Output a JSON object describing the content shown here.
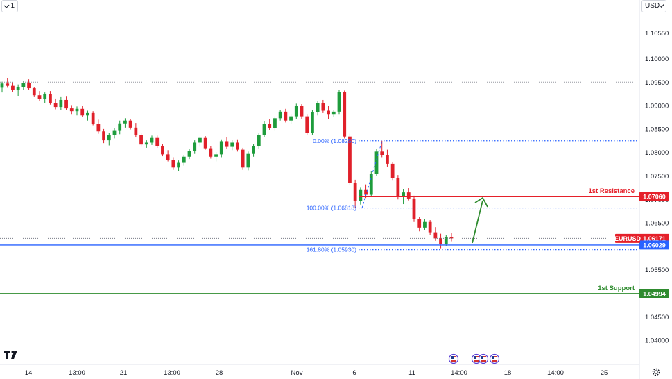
{
  "toolbar": {
    "interval_label": "1",
    "currency_label": "USD"
  },
  "icons": {
    "logo": "tradingview-logo-icon",
    "settings": "gear-icon",
    "events": "economic-event-flag-icon"
  },
  "colors": {
    "bull": "#26a69a",
    "bear": "#ef5350",
    "bull_body": "#1e9c3c",
    "bear_body": "#e0202a",
    "fib": "#2962ff",
    "resistance": "#e5202a",
    "support": "#2e8b2e",
    "arrow": "#2e8b2e",
    "price_tag": "#e5202a"
  },
  "chart_data": {
    "type": "candlestick",
    "symbol": "EURUSD",
    "y_axis": {
      "min": 1.0375,
      "max": 1.1085,
      "ticks": [
        "1.10550",
        "1.10000",
        "1.09500",
        "1.09000",
        "1.08500",
        "1.08000",
        "1.07500",
        "1.07000",
        "1.06500",
        "1.06000",
        "1.05500",
        "1.05000",
        "1.04500",
        "1.04000"
      ]
    },
    "x_axis": {
      "ticks": [
        "14",
        "13:00",
        "21",
        "13:00",
        "28",
        "Nov",
        "6",
        "11",
        "14:00",
        "18",
        "14:00",
        "25"
      ]
    },
    "levels": {
      "resistance": {
        "label": "1st Resistance",
        "value": 1.0706,
        "tag": "1.07060"
      },
      "support": {
        "label": "1st Support",
        "value": 1.04994,
        "tag": "1.04994"
      },
      "current": {
        "symbol": "EURUSD",
        "value": 1.06171,
        "tag": "1.06171"
      },
      "blue_line": {
        "value": 1.06029,
        "tag": "1.06029"
      },
      "top_dotted": {
        "value": 1.095
      }
    },
    "fibonacci": [
      {
        "label": "0.00% (1.08250)",
        "value": 1.0825
      },
      {
        "label": "100.00% (1.06818)",
        "value": 1.06818
      },
      {
        "label": "161.80% (1.05930)",
        "value": 1.0593
      }
    ],
    "candles": [
      [
        1.0938,
        1.0951,
        1.0928,
        1.0947
      ],
      [
        1.0947,
        1.0958,
        1.0938,
        1.0942
      ],
      [
        1.0942,
        1.095,
        1.0929,
        1.0933
      ],
      [
        1.0933,
        1.0945,
        1.092,
        1.0939
      ],
      [
        1.0939,
        1.0952,
        1.0933,
        1.0948
      ],
      [
        1.0948,
        1.0956,
        1.0934,
        1.0937
      ],
      [
        1.0937,
        1.094,
        1.0918,
        1.0922
      ],
      [
        1.0922,
        1.0931,
        1.0909,
        1.0914
      ],
      [
        1.0914,
        1.0928,
        1.0906,
        1.0925
      ],
      [
        1.0925,
        1.0931,
        1.0902,
        1.0905
      ],
      [
        1.0905,
        1.0915,
        1.0892,
        1.0897
      ],
      [
        1.0897,
        1.0918,
        1.0891,
        1.0912
      ],
      [
        1.0912,
        1.0919,
        1.089,
        1.0894
      ],
      [
        1.0894,
        1.0901,
        1.0882,
        1.0888
      ],
      [
        1.0888,
        1.0898,
        1.0879,
        1.0893
      ],
      [
        1.0893,
        1.0899,
        1.0875,
        1.0879
      ],
      [
        1.0879,
        1.0889,
        1.0868,
        1.0884
      ],
      [
        1.0884,
        1.0888,
        1.0858,
        1.0861
      ],
      [
        1.0861,
        1.087,
        1.084,
        1.0845
      ],
      [
        1.0845,
        1.085,
        1.082,
        1.0826
      ],
      [
        1.0826,
        1.0842,
        1.0815,
        1.0837
      ],
      [
        1.0837,
        1.0852,
        1.083,
        1.0846
      ],
      [
        1.0846,
        1.0868,
        1.0839,
        1.0862
      ],
      [
        1.0862,
        1.0873,
        1.0853,
        1.0868
      ],
      [
        1.0868,
        1.0871,
        1.0849,
        1.0853
      ],
      [
        1.0853,
        1.0863,
        1.0832,
        1.0837
      ],
      [
        1.0837,
        1.0842,
        1.0812,
        1.0817
      ],
      [
        1.0817,
        1.0826,
        1.081,
        1.0821
      ],
      [
        1.0821,
        1.0836,
        1.0816,
        1.0831
      ],
      [
        1.0831,
        1.0836,
        1.081,
        1.0813
      ],
      [
        1.0813,
        1.0818,
        1.0792,
        1.0796
      ],
      [
        1.0796,
        1.0805,
        1.0781,
        1.0784
      ],
      [
        1.0784,
        1.079,
        1.0763,
        1.0768
      ],
      [
        1.0768,
        1.0783,
        1.0761,
        1.0778
      ],
      [
        1.0778,
        1.0795,
        1.0772,
        1.0791
      ],
      [
        1.0791,
        1.0808,
        1.0786,
        1.0803
      ],
      [
        1.0803,
        1.0826,
        1.0797,
        1.0821
      ],
      [
        1.0821,
        1.0834,
        1.0812,
        1.0831
      ],
      [
        1.0831,
        1.0835,
        1.0806,
        1.0809
      ],
      [
        1.0809,
        1.0814,
        1.0787,
        1.0791
      ],
      [
        1.0791,
        1.0801,
        1.0781,
        1.0796
      ],
      [
        1.0796,
        1.0828,
        1.079,
        1.0824
      ],
      [
        1.0824,
        1.0832,
        1.0808,
        1.0812
      ],
      [
        1.0812,
        1.0826,
        1.0805,
        1.0821
      ],
      [
        1.0821,
        1.0828,
        1.0802,
        1.0806
      ],
      [
        1.0806,
        1.081,
        1.0763,
        1.0768
      ],
      [
        1.0768,
        1.0802,
        1.0762,
        1.0797
      ],
      [
        1.0797,
        1.0818,
        1.0791,
        1.0814
      ],
      [
        1.0814,
        1.0842,
        1.0808,
        1.0838
      ],
      [
        1.0838,
        1.0866,
        1.0832,
        1.0861
      ],
      [
        1.0861,
        1.0872,
        1.0847,
        1.0852
      ],
      [
        1.0852,
        1.0877,
        1.0846,
        1.0873
      ],
      [
        1.0873,
        1.0891,
        1.0868,
        1.0887
      ],
      [
        1.0887,
        1.0893,
        1.0864,
        1.0868
      ],
      [
        1.0868,
        1.0882,
        1.0861,
        1.0877
      ],
      [
        1.0877,
        1.0904,
        1.0872,
        1.0899
      ],
      [
        1.0899,
        1.0903,
        1.0872,
        1.0877
      ],
      [
        1.0877,
        1.0882,
        1.0838,
        1.0842
      ],
      [
        1.0842,
        1.089,
        1.0838,
        1.0886
      ],
      [
        1.0886,
        1.091,
        1.0879,
        1.0906
      ],
      [
        1.0906,
        1.0912,
        1.0884,
        1.0889
      ],
      [
        1.0889,
        1.09,
        1.0872,
        1.0882
      ],
      [
        1.0882,
        1.089,
        1.0876,
        1.0887
      ],
      [
        1.0887,
        1.0934,
        1.0882,
        1.0929
      ],
      [
        1.0929,
        1.0932,
        1.083,
        1.0834
      ],
      [
        1.0834,
        1.084,
        1.073,
        1.0735
      ],
      [
        1.0735,
        1.0742,
        1.0681,
        1.0696
      ],
      [
        1.0696,
        1.0725,
        1.0689,
        1.072
      ],
      [
        1.072,
        1.0732,
        1.0703,
        1.071
      ],
      [
        1.071,
        1.076,
        1.0705,
        1.0755
      ],
      [
        1.0755,
        1.0808,
        1.075,
        1.0802
      ],
      [
        1.0802,
        1.0825,
        1.079,
        1.0795
      ],
      [
        1.0795,
        1.0806,
        1.077,
        1.0776
      ],
      [
        1.0776,
        1.078,
        1.074,
        1.0745
      ],
      [
        1.0745,
        1.0752,
        1.07,
        1.0706
      ],
      [
        1.0706,
        1.0722,
        1.069,
        1.0715
      ],
      [
        1.0715,
        1.0724,
        1.0698,
        1.0702
      ],
      [
        1.0702,
        1.0708,
        1.0652,
        1.0658
      ],
      [
        1.0658,
        1.0662,
        1.0632,
        1.064
      ],
      [
        1.064,
        1.0658,
        1.0635,
        1.0652
      ],
      [
        1.0652,
        1.0656,
        1.0625,
        1.063
      ],
      [
        1.063,
        1.0641,
        1.0612,
        1.0617
      ],
      [
        1.0617,
        1.0627,
        1.0596,
        1.0605
      ],
      [
        1.0605,
        1.0624,
        1.0601,
        1.062
      ],
      [
        1.062,
        1.0628,
        1.0611,
        1.0617
      ]
    ]
  }
}
